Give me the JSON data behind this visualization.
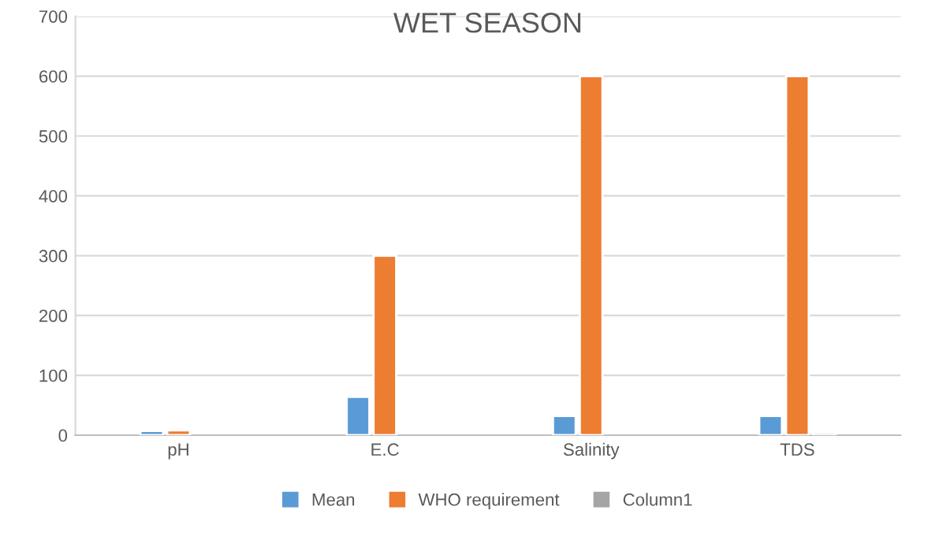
{
  "chart_data": {
    "type": "bar",
    "title": "WET SEASON",
    "categories": [
      "pH",
      "E.C",
      "Salinity",
      "TDS"
    ],
    "series": [
      {
        "name": "Mean",
        "color": "#5b9bd5",
        "values": [
          7,
          64,
          32,
          32
        ]
      },
      {
        "name": "WHO requirement",
        "color": "#ed7d31",
        "values": [
          8,
          300,
          600,
          600
        ]
      },
      {
        "name": "Column1",
        "color": "#a5a5a5",
        "values": [
          null,
          null,
          null,
          4
        ]
      }
    ],
    "ylim": [
      0,
      700
    ],
    "yticks": [
      0,
      100,
      200,
      300,
      400,
      500,
      600,
      700
    ],
    "grid": "y",
    "legend": "bottom"
  }
}
